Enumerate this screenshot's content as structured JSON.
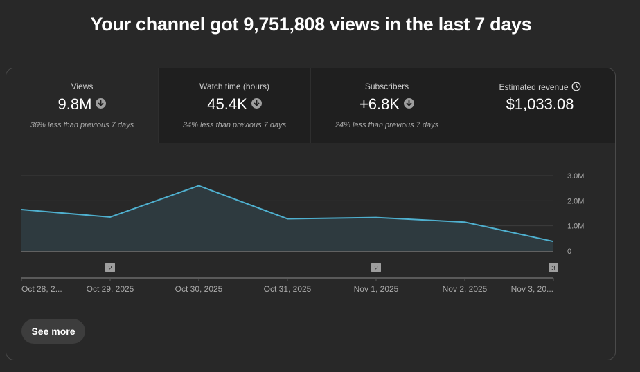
{
  "headline": "Your channel got 9,751,808 views in the last 7 days",
  "metrics": [
    {
      "label": "Views",
      "value": "9.8M",
      "note": "36% less than previous 7 days",
      "trend": "down"
    },
    {
      "label": "Watch time (hours)",
      "value": "45.4K",
      "note": "34% less than previous 7 days",
      "trend": "down"
    },
    {
      "label": "Subscribers",
      "value": "+6.8K",
      "note": "24% less than previous 7 days",
      "trend": "down"
    },
    {
      "label": "Estimated revenue",
      "value": "$1,033.08",
      "note": "",
      "icon": "clock-icon"
    }
  ],
  "chart_data": {
    "type": "area",
    "x": [
      "Oct 28, 2...",
      "Oct 29, 2025",
      "Oct 30, 2025",
      "Oct 31, 2025",
      "Nov 1, 2025",
      "Nov 2, 2025",
      "Nov 3, 20..."
    ],
    "values": [
      1650000,
      1350000,
      2600000,
      1280000,
      1330000,
      1150000,
      380000
    ],
    "yticks": [
      "3.0M",
      "2.0M",
      "1.0M",
      "0"
    ],
    "ylim": [
      0,
      3000000
    ],
    "grid": true,
    "line_color": "#4fb0cf",
    "fill_color": "#2e3a3f",
    "markers": [
      {
        "x": "Oct 29, 2025",
        "label": "2"
      },
      {
        "x": "Nov 1, 2025",
        "label": "2"
      },
      {
        "x": "Nov 3, 20...",
        "label": "3"
      }
    ]
  },
  "see_more_label": "See more"
}
